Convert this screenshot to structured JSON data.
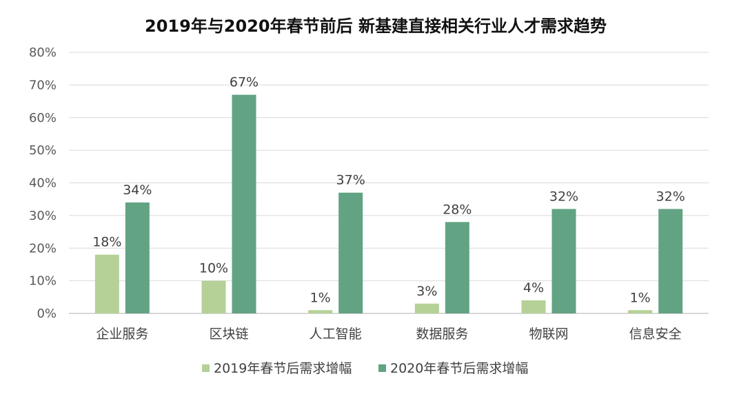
{
  "chart_data": {
    "type": "bar",
    "title": "2019年与2020年春节前后 新基建直接相关行业人才需求趋势",
    "xlabel": "",
    "ylabel": "",
    "categories": [
      "企业服务",
      "区块链",
      "人工智能",
      "数据服务",
      "物联网",
      "信息安全"
    ],
    "series": [
      {
        "name": "2019年春节后需求增幅",
        "values": [
          18,
          10,
          1,
          3,
          4,
          1
        ],
        "labels": [
          "18%",
          "10%",
          "1%",
          "3%",
          "4%",
          "1%"
        ],
        "color": "#b5d197"
      },
      {
        "name": "2020年春节后需求增幅",
        "values": [
          34,
          67,
          37,
          28,
          32,
          32
        ],
        "labels": [
          "34%",
          "67%",
          "37%",
          "28%",
          "32%",
          "32%"
        ],
        "color": "#62a383"
      }
    ],
    "ylim": [
      0,
      80
    ],
    "yticks": [
      0,
      10,
      20,
      30,
      40,
      50,
      60,
      70,
      80
    ],
    "ytick_labels": [
      "0%",
      "10%",
      "20%",
      "30%",
      "40%",
      "50%",
      "60%",
      "70%",
      "80%"
    ],
    "grid": true,
    "legend_position": "bottom"
  }
}
